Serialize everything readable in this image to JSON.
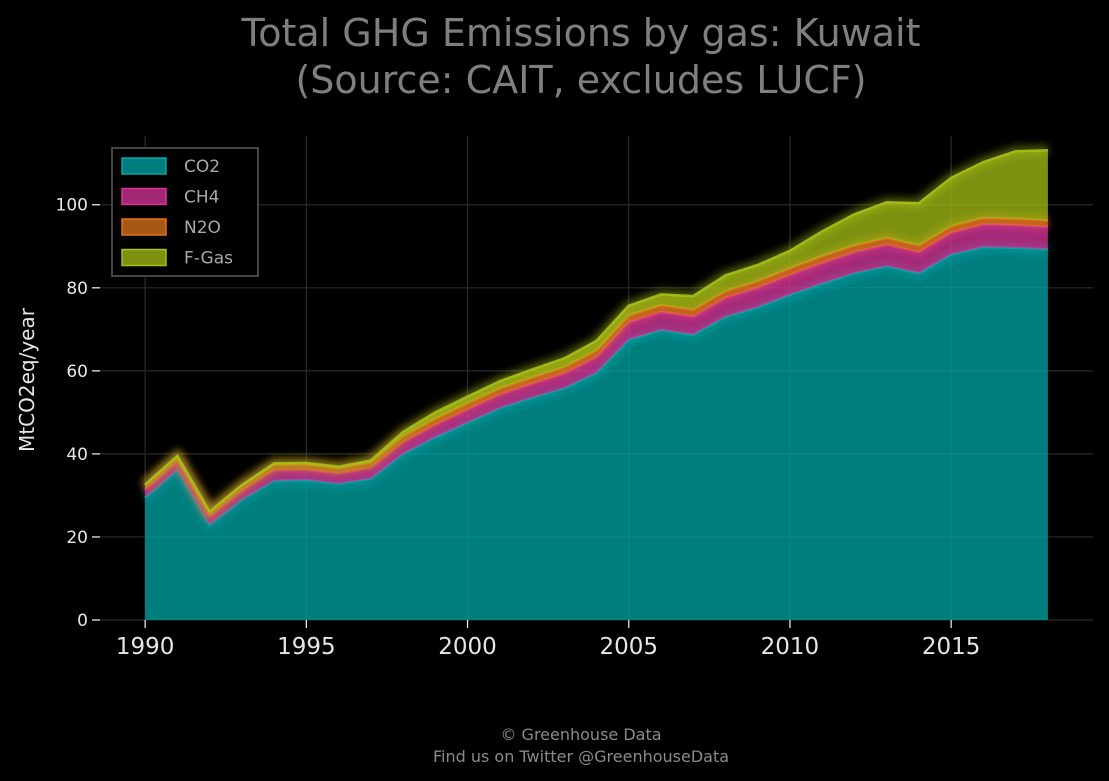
{
  "chart_data": {
    "type": "area",
    "stacked": true,
    "title": "Total GHG Emissions by gas: Kuwait",
    "subtitle": "(Source: CAIT, excludes LUCF)",
    "xlabel": "",
    "ylabel": "MtCO2eq/year",
    "xlim": [
      1988.6,
      2019.4
    ],
    "ylim": [
      0,
      118
    ],
    "grid": true,
    "legend_position": "top-left",
    "x_ticks": [
      1990,
      1995,
      2000,
      2005,
      2010,
      2015
    ],
    "y_ticks": [
      0,
      20,
      40,
      60,
      80,
      100
    ],
    "x": [
      1990,
      1991,
      1992,
      1993,
      1994,
      1995,
      1996,
      1997,
      1998,
      1999,
      2000,
      2001,
      2002,
      2003,
      2004,
      2005,
      2006,
      2007,
      2008,
      2009,
      2010,
      2011,
      2012,
      2013,
      2014,
      2015,
      2016,
      2017,
      2018
    ],
    "series": [
      {
        "name": "CO2",
        "color": "#00a8a8",
        "values": [
          29.5,
          36.2,
          23.0,
          29.0,
          33.5,
          33.7,
          32.8,
          34.0,
          40.0,
          44.0,
          47.5,
          51.0,
          53.5,
          55.8,
          59.5,
          67.5,
          69.8,
          68.7,
          73.0,
          75.3,
          78.3,
          81.0,
          83.5,
          85.2,
          83.5,
          88.0,
          89.8,
          89.6,
          89.3
        ]
      },
      {
        "name": "CH4",
        "color": "#d8359b",
        "values": [
          2.0,
          2.0,
          2.0,
          2.2,
          2.6,
          2.5,
          2.5,
          2.6,
          2.8,
          3.0,
          3.2,
          3.3,
          3.4,
          3.6,
          3.8,
          4.2,
          4.4,
          4.4,
          4.6,
          4.7,
          4.8,
          5.0,
          5.1,
          5.2,
          5.1,
          5.3,
          5.5,
          5.5,
          5.4
        ]
      },
      {
        "name": "N2O",
        "color": "#e0761b",
        "values": [
          0.9,
          1.1,
          0.9,
          1.1,
          1.3,
          1.3,
          1.3,
          1.4,
          1.5,
          1.5,
          1.5,
          1.5,
          1.5,
          1.5,
          1.6,
          1.6,
          1.6,
          1.6,
          1.6,
          1.6,
          1.6,
          1.6,
          1.6,
          1.6,
          1.6,
          1.5,
          1.5,
          1.5,
          1.5
        ]
      },
      {
        "name": "F-Gas",
        "color": "#a7c016",
        "values": [
          0.2,
          0.2,
          0.2,
          0.2,
          0.3,
          0.3,
          0.3,
          0.4,
          1.0,
          1.5,
          1.6,
          1.7,
          1.9,
          2.1,
          2.3,
          2.4,
          2.6,
          3.3,
          3.8,
          3.9,
          4.2,
          6.0,
          7.5,
          8.6,
          10.2,
          11.7,
          13.5,
          16.3,
          16.9
        ]
      }
    ]
  },
  "credit": {
    "line1": "© Greenhouse Data",
    "line2": "Find us on Twitter @GreenhouseData"
  }
}
